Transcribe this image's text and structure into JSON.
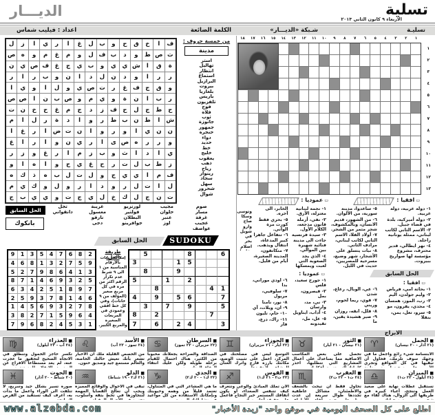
{
  "masthead": {
    "title": "تسلية",
    "date": "الاربعاء ٩ كانون الثاني ٢٠١٣",
    "logo": "الديـــار"
  },
  "section_bar": {
    "tasliya": "تسليـة",
    "grid_title": "شـبكة «الديـــار»",
    "lost_word": "الكلمة الضائعة",
    "credit": "اعداد : فيليب شماس"
  },
  "crossword": {
    "col_numbers": [
      "١",
      "٢",
      "٣",
      "٤",
      "٥",
      "٦",
      "٧",
      "٨",
      "٩",
      "١٠",
      "١١",
      "١٢",
      "١٣",
      "١٤",
      "١٥",
      "١٦",
      "١٧",
      "١٨"
    ],
    "row_numbers": [
      "١",
      "٢",
      "٣",
      "٤",
      "٥",
      "٦",
      "٧",
      "٨",
      "٩",
      "١٠",
      "١١",
      "١٢",
      "١٣"
    ],
    "pattern": [
      "......#.....#.PPPP",
      ".#.......#....PPPP",
      ".....#.....#..PPPP",
      "...#....#.....PPPP",
      ".....#......#...#.",
      "#.......#....#....",
      "....#.#....#...#..",
      "..#..#...#....#...",
      "...#...#....#.....",
      "......#...#......#",
      ".#......#..#......",
      "....#..#.....#....",
      ".........#.....#.."
    ],
    "across_label": "افقيا :",
    "down_label": "عموديا :",
    "across_clues": [
      "١- دولة عربية، دولة عربية.",
      "٢- دولة أميركية، بلدة في قضاء جبيل.",
      "٣- الاسم الثاني لكاتب لبناني، ممثلة يونانية راحلة.",
      "٤- نهر ايطالي، قدير محترف، مشروع مؤسسة لها صواريخ ببيروت.",
      "٥- ساعدوا، مدينة سورية، من الألوان.",
      "٦- من الشهور، قديم الانسان، وبالمكشوف، شجر مثمر من الشجر.",
      "٧- أولاد الفلا، الاسم الثاني لكاتب لبناني، مرادف الثاني.",
      "٨- نبات يتسلق على الأشجار، شهر وضيع، مسرحية للمصريين، حديث في الليل.",
      "٩- مسكن، صوابه، نوع من العنب، مدينة عربية.",
      "١٠- مدينة عراقية، مدينة ايرانية ضمن مناصل تلمع.",
      "١١- مدينة سعودية، مغنية فرنسية راحلة.",
      "١٢- يعقر الفساد، اسم موصول، أطراف المصابيح، بأمره.",
      "١٣- أيتام اثنان، حامضات، بلدة في لبنان، صوت الضبع."
    ],
    "down_clues": [
      "١- نجمة لبنانية معتزلة، الأرق.",
      "٢- نفي، أرملة قانون مذجعه، الكلام الأول.",
      "٣- سيدة فرنسية جاءت الى مدينة فنائية شهيرة بين الموالي.",
      "٤- الذي يجد الصعوبة التي لعبت ويمسكها الخابر، الى آخره.",
      "٥- بحري فقط كورت مرة الواني.",
      "٦- تتفاعل جاهرا كبير المدعاة، انتقال ويذهب.",
      "٧- متكاتفون، المدينة الصغيرة، أيام من قليل.",
      "٨- التنفس بعد القضيب والأرياف.",
      "٩- نوع من الحديد، لكور.",
      "١٠- بذاعتها اداها بشت مستني.",
      "١١- المدينة وعاش، مدخل للبطاقم.",
      "١٢- صباح الأديب، وبلدة أهل.",
      "١٣- فنسويين أو رشف، شأن.",
      "١٤- الفن الصباح.",
      "١٥- بلاد، سفارة ابنة.",
      "١٦- جمع الشرير، فسحة.",
      "١٧- سندان، اقفال.",
      "١٨- والحملة شرقي، كاصور بلحاطس كهنم."
    ],
    "down_clues_cont": [
      "وتوسى وسكا صاح",
      "وارو شويل في بحر",
      "اصلام بقاعيا، قانا يكو سعوك، مع الطيط لو عن"
    ]
  },
  "prev_crossword": {
    "banner": "الحل السابق",
    "across_label": "افقيا :",
    "down_label": "عموديا :",
    "across": [
      "١- بحاثة امي، فرياض",
      "٢- وليم جولدن، اليم",
      "٣- رب، الموز، همسان",
      "٤- مجدي، يقرون، مو",
      "٥- سرو، تعل، يمن، بنقلا",
      "٦- عي، الوبال، رعاع، شدن",
      "٧- قوي، ريما لحوم، وريني",
      "٨- قلل، انقه، روزان",
      "٩- صير هشيدة يقين، ما",
      "١٠- ب، بوستان الأجر",
      "١١- السعودية، وريد، فش",
      "١٢- الشيو، أنوف، القصه",
      "١٣- صور، حلمي المسلم، حطب"
    ],
    "down": [
      "١- جورج سعيد، قلس",
      "٢- قيصرون، بمل",
      "٣- ني، مد، وارسان",
      "٤- آداب، ايتاويل",
      "٥- عل، مل، تقيدونه",
      "٦- اودي موراني، بدا",
      "٧- سلوفيي، مربول",
      "٨- نور، نامنا",
      "٩- ان، ويلات، آي",
      "١٠- حام، تليون",
      "١١- راك، درع، فار",
      "١٢- يوم من عمري",
      "١٣- الان، ويد",
      "١٤- حسين، بعود",
      "١٥- رام الله",
      "١٦- لافين، فا",
      "١٧- شدن، مراعل",
      "١٨- البعد، فهم"
    ]
  },
  "wordsearch": {
    "subtitle": "من خمسة حروف :",
    "category": "مدينة",
    "letters": [
      [
        "ف",
        "ا",
        "خ",
        "ق",
        "ح",
        "و",
        "ب",
        "ل",
        "غ",
        "ا",
        "ر",
        "ي",
        "ا",
        "ز",
        "ل"
      ],
      [
        "ث",
        "ص",
        "ط",
        "و",
        "د",
        "ب",
        "ف",
        "ل",
        "و",
        "م",
        "غ",
        "م",
        "و",
        "ه",
        "ص"
      ],
      [
        "ة",
        "ق",
        "ا",
        "ش",
        "ي",
        "ي",
        "و",
        "ب",
        "ي",
        "ج",
        "غ",
        "ف",
        "ص",
        "ي",
        "ن"
      ],
      [
        "ر",
        "ر",
        "ا",
        "و",
        "د",
        "ن",
        "ل",
        "د",
        "ا",
        "ن",
        "و",
        "ب",
        "ر",
        "ا",
        "ر"
      ],
      [
        "و",
        "ق",
        "ج",
        "ف",
        "غ",
        "ر",
        "ت",
        "ص",
        "ي",
        "و",
        "ل",
        "ا",
        "و",
        "ي",
        "ا"
      ],
      [
        "ر",
        "ب",
        "ا",
        "ن",
        "ة",
        "و",
        "ي",
        "م",
        "و",
        "ص",
        "ب",
        "ن",
        "ا",
        "ص",
        "ص"
      ],
      [
        "ح",
        "ط",
        "ج",
        "ل",
        "ح",
        "ف",
        "ز",
        "د",
        "ج",
        "م",
        "غ",
        "ح",
        "خ",
        "ن",
        "ت"
      ],
      [
        "ش",
        "ا",
        "ط",
        "ن",
        "ب",
        "ط",
        "ر",
        "و",
        "ا",
        "د",
        "ة",
        "ر",
        "ل",
        "ا",
        "م"
      ],
      [
        "ن",
        "ن",
        "ي",
        "ا",
        "و",
        "ر",
        "و",
        "ا",
        "ن",
        "ت",
        "ض",
        "ا",
        "ر",
        "غ",
        "ا"
      ],
      [
        "و",
        "ر",
        "ر",
        "ه",
        "ص",
        "ى",
        "ا",
        "ر",
        "ي",
        "ن",
        "و",
        "ا",
        "ر",
        "ا",
        "غ"
      ],
      [
        "ي",
        "ا",
        "د",
        "ا",
        "ث",
        "و",
        "ب",
        "ز",
        "م",
        "ا",
        "ر",
        "غ",
        "و",
        "ز",
        "ر"
      ],
      [
        "ز",
        "ط",
        "ب",
        "ل",
        "ت",
        "ر",
        "ح",
        "غ",
        "ي",
        "ح",
        "و",
        "ا",
        "ه",
        "ا",
        "و"
      ],
      [
        "ف",
        "م",
        "ا",
        "ي",
        "ي",
        "ج",
        "و",
        "ل",
        "ت",
        "ل",
        "ب",
        "ه",
        "ذ",
        "ك",
        "ه"
      ],
      [
        "ل",
        "ا",
        "ت",
        "ل",
        "ر",
        "و",
        "د",
        "ا",
        "ر",
        "و",
        "ل",
        "و",
        "ك",
        "ي",
        "م"
      ],
      [
        "ت",
        "ن",
        "ج",
        "ل",
        "ك",
        "خ",
        "ل",
        "ي",
        "ج",
        "ت",
        "و",
        "ي",
        "ي",
        "ب",
        "ج"
      ]
    ],
    "words": [
      "استر",
      "تهاليل",
      "انتظار",
      "استماع",
      "البرازيل",
      "بيروت",
      "بلغاريا",
      "باريس",
      "تلفزيون",
      "فوج",
      "فلاة",
      "ثوب",
      "جاتوزة",
      "جمهور",
      "حنجرة",
      "دواء",
      "حديد",
      "خط",
      "خليج",
      "يعقوب",
      "ذهب",
      "رياح",
      "رينوار",
      "سجاد",
      "سهل",
      "شحرور",
      "شوال"
    ],
    "extra_word_columns": [
      [
        "صوم",
        "مسار",
        "غرفة",
        "عجيب",
        "عواصف"
      ],
      [
        "مجيب",
        "حلوان",
        "عنبر",
        "اوز"
      ],
      [
        "لورنزيو",
        "فولتير",
        "البطلان",
        "جوافرينو"
      ],
      [
        "غريبة",
        "معسول",
        "نارفو",
        "دجى"
      ],
      [
        "تجل",
        "دانقواني"
      ]
    ],
    "prev_label": "الحل السابق",
    "prev_answer": "بانكوك"
  },
  "sudoku": {
    "title": "SUDOKU",
    "prev_banner": "الحل السابق",
    "method_label": "طريقة الحل:",
    "method_text": "إملأ المربعات بالأرقام المناسبة من ١ الى ٩ شرط عدم تكرار الرقم اكثر من مرة في كل مربع صغير (المؤلف من ٩ خانات)، وفي كل خط افقي وعمودي في المربعات الصغيرة والمربع الكبير.",
    "solution": [
      [
        9,
        1,
        3,
        5,
        4,
        7,
        6,
        8,
        2
      ],
      [
        4,
        6,
        8,
        1,
        3,
        2,
        7,
        5,
        9
      ],
      [
        5,
        2,
        7,
        9,
        8,
        6,
        4,
        1,
        3
      ],
      [
        8,
        7,
        1,
        4,
        6,
        9,
        3,
        2,
        5
      ],
      [
        6,
        3,
        4,
        2,
        5,
        1,
        8,
        9,
        7
      ],
      [
        2,
        5,
        9,
        3,
        7,
        8,
        1,
        4,
        6
      ],
      [
        1,
        4,
        5,
        6,
        9,
        3,
        2,
        7,
        8
      ],
      [
        3,
        8,
        2,
        7,
        1,
        5,
        9,
        6,
        4
      ],
      [
        7,
        9,
        6,
        8,
        2,
        4,
        5,
        3,
        1
      ]
    ],
    "puzzle": [
      [
        0,
        5,
        0,
        0,
        0,
        8,
        0,
        0,
        6
      ],
      [
        3,
        0,
        0,
        0,
        1,
        5,
        0,
        0,
        0
      ],
      [
        0,
        8,
        0,
        0,
        9,
        0,
        0,
        0,
        0
      ],
      [
        5,
        0,
        0,
        1,
        0,
        2,
        0,
        0,
        0
      ],
      [
        0,
        0,
        8,
        0,
        0,
        0,
        0,
        4,
        1
      ],
      [
        4,
        0,
        9,
        0,
        5,
        6,
        0,
        0,
        7
      ],
      [
        0,
        3,
        0,
        7,
        0,
        9,
        0,
        0,
        5
      ],
      [
        8,
        0,
        2,
        0,
        0,
        0,
        0,
        7,
        0
      ],
      [
        7,
        0,
        6,
        0,
        2,
        4,
        0,
        0,
        3
      ]
    ]
  },
  "horoscope": {
    "banner": "الابراج",
    "signs": [
      {
        "name": "الحمل",
        "symbol": "♈",
        "dates": "(٢١ آذار - ٢٠ نيسان)",
        "text": "الابتسامة شيء رائع وأجمل ما في وجهك سوف تلزمك، فحاول أن تبقيها في كل المواقع وتجري الأمور على سجيتها مع معاينة الامور."
      },
      {
        "name": "الثور",
        "symbol": "♉",
        "dates": "(٢١ نيسان - ٢١ أيار)",
        "text": "تحصل على بعض المكاسب الاضافية مما يساعدك على أعمال المشاريع التي تتطلبها، احذر كلماتك التي تسبق أفكارك."
      },
      {
        "name": "الجوزاء",
        "symbol": "♊",
        "dates": "(٢٢ أيار - ٢١ حزيران)",
        "text": "التوسع ليس في مصلحتك في المركز، اعمل على تثبيت الوضع، مكانتك بارزة فارع واترك العنان للمشاعر ولا تقيدها."
      },
      {
        "name": "السرطان",
        "symbol": "♋",
        "dates": "(٢٢ حزيران - ٢٣ تموز)",
        "text": "الصداقة والصراحة يجعلانك محبوباً من الكثير، هناك احتمال للقيام برحلة طويلة ولكن عليك انتقاء الرفاق المناسبين."
      },
      {
        "name": "الأسد",
        "symbol": "♌",
        "dates": "(٢٤ تموز - ٢٣ آب)",
        "text": "من الحصص القليلة ملك أن الأخبار تشعر بأنك تعيش حالتك الخاصة، والعالم مستمع جيد وصديق حنون."
      },
      {
        "name": "العذراء",
        "symbol": "♍",
        "dates": "(٢٤ آب - ٢٣ أيلول)",
        "text": "تكسر حاجز الخمول وتنطلق في الاتجاه الصحيح لتحقيق ما عجزت عنه، لم يعد مستطاعاً الافراج عن الصغيرة والانقلاب للمستندين."
      },
      {
        "name": "الميزان",
        "symbol": "♎",
        "dates": "(٢٤ أيلول - ٢٣ ت١)",
        "text": "تستقبل عطلات نهاية على صعيد العمل وتنجح، أعباء كبيرة في طريقها الى الزوال، هناك لقاء مع شخص يغني روتين حياتك."
      },
      {
        "name": "العقرب",
        "symbol": "♏",
        "dates": "(٢٤ ت١ - ٢٢ ت٢)",
        "text": "تحاول فقط أن تبحث بالشغف والاطمئنان، مشاكل عاطفية تجددها طوال سريعة إن عدت مظهرها وجهة لقاء الأطراف الجارية."
      },
      {
        "name": "القوس",
        "symbol": "♐",
        "dates": "(٢٣ ت٢ - ٢١ ك١)",
        "text": "الآن تملك المبادئ والوعي وتتعرف كيف تتنفس الصعداء، أو يكون اتفاقك المستمر خير النجاح فاعمل على حقيقة أحاسيسك."
      },
      {
        "name": "الجدي",
        "symbol": "♑",
        "dates": "(٢٢ ك١ - ٢٠ ك٢)",
        "text": "ما هي المشاعر التي في المتناول، تعتمد قليلاً من وهمه وحيويتك وبإمكانك الاستفادة من كل مواعيد في نشاطاتك اليومية."
      },
      {
        "name": "الدلو",
        "symbol": "♒",
        "dates": "(٢١ ك٢ - ١٩ شباط)",
        "text": "تبقى في الأحوال والوقائع المميزة ويجب أن تعالج القضايا المهمة لتتجاوزها في تخطٍ بثقة وأسلوب، تحسن في الأحوال المقبلة."
      },
      {
        "name": "الحوت",
        "symbol": "♓",
        "dates": "(٢٠ شباط - ٢٠ آذار)",
        "text": "صورة تسير بشكل جيد وسريع، لا تتلفت الى الوراء واعمل ما بدأت به، اعرف كيف تستفيد من الفرص السانحة."
      }
    ]
  },
  "footer": {
    "url": "www.alzebda.com",
    "slogan": "اطلع على كل الصحف اليومية في موقع واحد \"زبدة الأخبار\""
  },
  "colors": {
    "shaded_cell": "#8f8f8f",
    "banner_fill": "#e9ab9b",
    "banner_stroke": "#1d4f52",
    "bar_gray": "#dcdcda"
  }
}
